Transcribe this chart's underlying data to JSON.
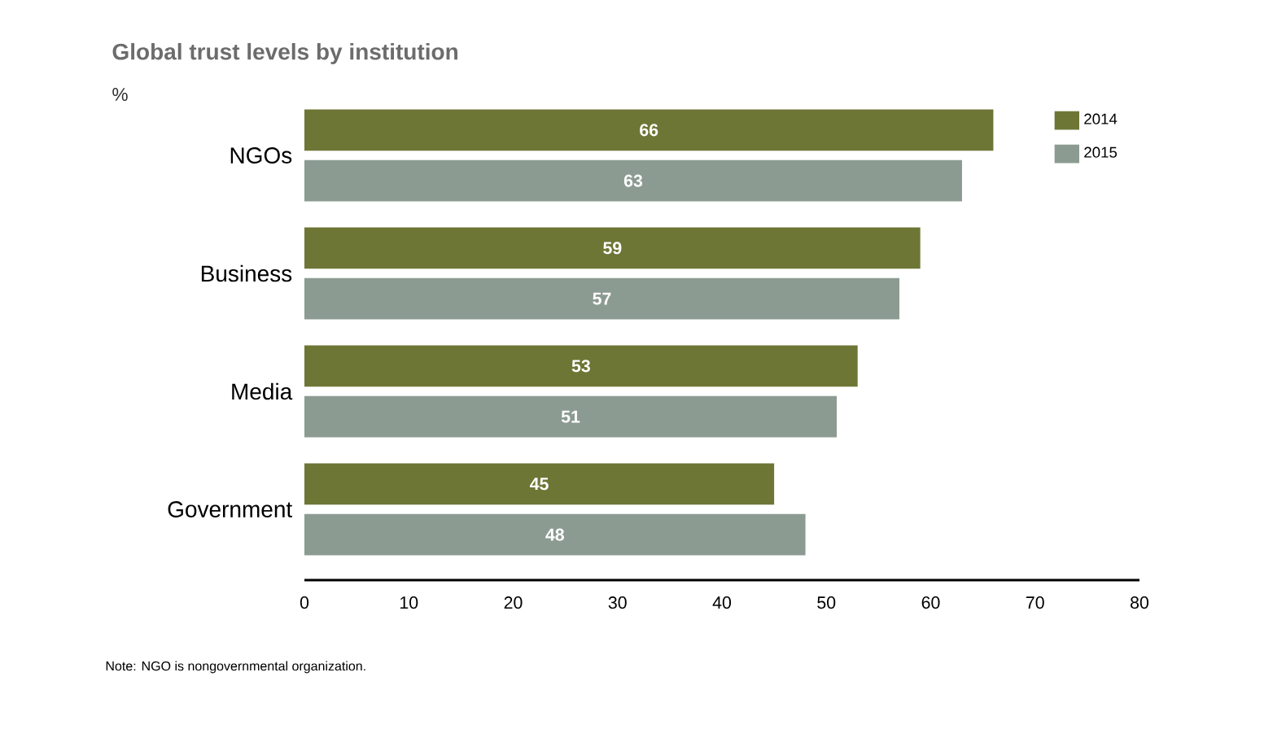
{
  "chart_data": {
    "type": "bar",
    "orientation": "horizontal",
    "title": "Global trust levels by institution",
    "subtitle": "%",
    "categories": [
      "NGOs",
      "Business",
      "Media",
      "Government"
    ],
    "series": [
      {
        "name": "2014",
        "color": "#6e7636",
        "values": [
          66,
          59,
          53,
          45
        ]
      },
      {
        "name": "2015",
        "color": "#8c9b92",
        "values": [
          63,
          57,
          51,
          48
        ]
      }
    ],
    "xlim": [
      0,
      80
    ],
    "xticks": [
      0,
      10,
      20,
      30,
      40,
      50,
      60,
      70,
      80
    ],
    "data_labels": true,
    "legend": "top right",
    "annotations": [
      "Note: NGO is nongovernmental organization."
    ]
  }
}
